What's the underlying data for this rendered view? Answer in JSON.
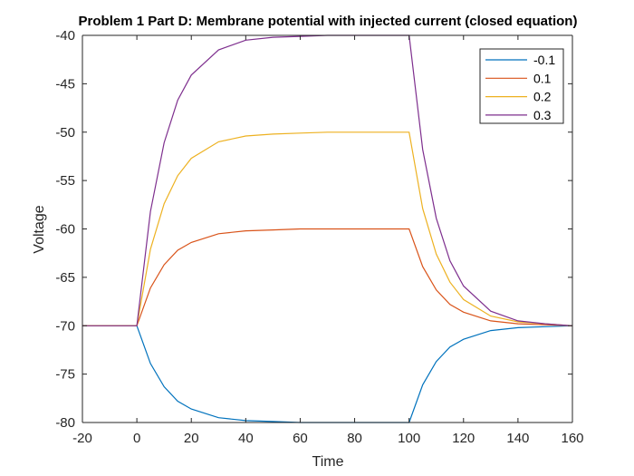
{
  "chart_data": {
    "type": "line",
    "title": "Problem 1 Part D: Membrane potential with injected current (closed equation)",
    "xlabel": "Time",
    "ylabel": "Voltage",
    "xlim": [
      -20,
      160
    ],
    "ylim": [
      -80,
      -40
    ],
    "xticks": [
      -20,
      0,
      20,
      40,
      60,
      80,
      100,
      120,
      140,
      160
    ],
    "yticks": [
      -40,
      -45,
      -50,
      -55,
      -60,
      -65,
      -70,
      -75,
      -80
    ],
    "grid": false,
    "legend_position": "top-right",
    "series": [
      {
        "name": "-0.1",
        "color": "#0072BD",
        "x": [
          -20,
          0,
          5,
          10,
          15,
          20,
          30,
          40,
          50,
          60,
          70,
          80,
          90,
          100,
          105,
          110,
          115,
          120,
          130,
          140,
          150,
          160
        ],
        "y": [
          -70,
          -70,
          -73.9,
          -76.3,
          -77.8,
          -78.6,
          -79.5,
          -79.8,
          -79.9,
          -80,
          -80,
          -80,
          -80,
          -80,
          -76.1,
          -73.7,
          -72.2,
          -71.4,
          -70.5,
          -70.2,
          -70.1,
          -70
        ]
      },
      {
        "name": "0.1",
        "color": "#D95319",
        "x": [
          -20,
          0,
          5,
          10,
          15,
          20,
          30,
          40,
          50,
          60,
          70,
          80,
          90,
          100,
          105,
          110,
          115,
          120,
          130,
          140,
          150,
          160
        ],
        "y": [
          -70,
          -70,
          -66.1,
          -63.7,
          -62.2,
          -61.4,
          -60.5,
          -60.2,
          -60.1,
          -60,
          -60,
          -60,
          -60,
          -60,
          -63.9,
          -66.3,
          -67.8,
          -68.6,
          -69.5,
          -69.8,
          -69.9,
          -70
        ]
      },
      {
        "name": "0.2",
        "color": "#EDB120",
        "x": [
          -20,
          0,
          5,
          10,
          15,
          20,
          30,
          40,
          50,
          60,
          70,
          80,
          90,
          100,
          105,
          110,
          115,
          120,
          130,
          140,
          150,
          160
        ],
        "y": [
          -70,
          -70,
          -62.1,
          -57.4,
          -54.5,
          -52.7,
          -51,
          -50.4,
          -50.2,
          -50.1,
          -50,
          -50,
          -50,
          -50,
          -57.9,
          -62.6,
          -65.5,
          -67.3,
          -69,
          -69.6,
          -69.8,
          -70
        ]
      },
      {
        "name": "0.3",
        "color": "#7E2F8E",
        "x": [
          -20,
          0,
          5,
          10,
          15,
          20,
          30,
          40,
          50,
          60,
          70,
          80,
          90,
          100,
          105,
          110,
          115,
          120,
          130,
          140,
          150,
          160
        ],
        "y": [
          -70,
          -70,
          -58.2,
          -51.1,
          -46.7,
          -44.1,
          -41.5,
          -40.5,
          -40.2,
          -40.1,
          -40,
          -40,
          -40,
          -40,
          -51.8,
          -58.9,
          -63.3,
          -65.9,
          -68.5,
          -69.5,
          -69.8,
          -70
        ]
      }
    ]
  }
}
